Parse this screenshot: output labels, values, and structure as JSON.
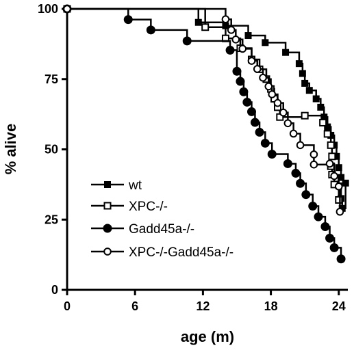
{
  "chart_data": {
    "type": "line",
    "step": true,
    "xlabel": "age (m)",
    "ylabel": "% alive",
    "xlim": [
      0,
      24.8
    ],
    "ylim": [
      0,
      100
    ],
    "x_ticks": [
      0,
      6,
      12,
      18,
      24
    ],
    "y_ticks": [
      0,
      25,
      50,
      75,
      100
    ],
    "x_tick_labels": [
      "0",
      "6",
      "12",
      "18",
      "24"
    ],
    "y_tick_labels": [
      "0",
      "25",
      "50",
      "75",
      "100"
    ],
    "grid": false,
    "legend_position": "lower-left",
    "series": [
      {
        "name": "wt",
        "marker": "filled-square",
        "points": [
          [
            0,
            100
          ],
          [
            11.6,
            95.2
          ],
          [
            14.0,
            94.0
          ],
          [
            16.0,
            90.5
          ],
          [
            17.5,
            88.0
          ],
          [
            19.3,
            84.5
          ],
          [
            20.5,
            80.5
          ],
          [
            20.8,
            77.0
          ],
          [
            21.0,
            73.5
          ],
          [
            21.4,
            71.0
          ],
          [
            22.0,
            68.0
          ],
          [
            22.4,
            65.0
          ],
          [
            22.7,
            61.5
          ],
          [
            23.0,
            58.0
          ],
          [
            23.3,
            55.0
          ],
          [
            23.6,
            51.5
          ],
          [
            23.8,
            47.5
          ],
          [
            24.0,
            43.5
          ],
          [
            24.2,
            40.0
          ],
          [
            24.0,
            37.0
          ],
          [
            24.2,
            32.5
          ],
          [
            24.3,
            29.0
          ],
          [
            24.6,
            38.0
          ]
        ]
      },
      {
        "name": "XPC-/-",
        "marker": "open-square",
        "points": [
          [
            0,
            100
          ],
          [
            12.2,
            93.5
          ],
          [
            14.0,
            89.5
          ],
          [
            15.3,
            86.0
          ],
          [
            16.3,
            82.0
          ],
          [
            17.0,
            78.5
          ],
          [
            17.6,
            75.0
          ],
          [
            18.0,
            71.5
          ],
          [
            18.3,
            68.0
          ],
          [
            18.6,
            65.0
          ],
          [
            18.8,
            61.5
          ],
          [
            21.0,
            62.0
          ],
          [
            22.6,
            59.5
          ],
          [
            23.0,
            55.5
          ],
          [
            23.3,
            51.5
          ],
          [
            23.4,
            47.5
          ],
          [
            23.3,
            44.0
          ],
          [
            23.4,
            41.0
          ],
          [
            23.6,
            37.5
          ],
          [
            24.0,
            32.0
          ]
        ]
      },
      {
        "name": "Gadd45a-/-",
        "marker": "filled-circle",
        "points": [
          [
            0,
            100
          ],
          [
            5.4,
            96.2
          ],
          [
            7.4,
            92.5
          ],
          [
            10.6,
            88.6
          ],
          [
            14.4,
            85.3
          ],
          [
            15.0,
            77.8
          ],
          [
            15.3,
            74.2
          ],
          [
            15.6,
            70.5
          ],
          [
            15.9,
            66.8
          ],
          [
            16.3,
            63.4
          ],
          [
            16.6,
            59.6
          ],
          [
            17.0,
            56.1
          ],
          [
            17.5,
            52.2
          ],
          [
            18.1,
            48.3
          ],
          [
            19.5,
            44.9
          ],
          [
            20.2,
            41.5
          ],
          [
            20.6,
            37.9
          ],
          [
            21.1,
            33.9
          ],
          [
            21.7,
            29.8
          ],
          [
            22.2,
            26.0
          ],
          [
            22.8,
            22.5
          ],
          [
            23.2,
            18.4
          ],
          [
            23.6,
            15.0
          ],
          [
            24.2,
            11.0
          ]
        ]
      },
      {
        "name": "XPC-/-Gadd45a-/-",
        "marker": "open-circle",
        "points": [
          [
            0,
            100
          ],
          [
            14.0,
            96.3
          ],
          [
            14.5,
            92.5
          ],
          [
            14.9,
            89.1
          ],
          [
            15.5,
            85.8
          ],
          [
            16.3,
            81.5
          ],
          [
            16.8,
            78.6
          ],
          [
            17.3,
            75.5
          ],
          [
            17.8,
            72.4
          ],
          [
            18.1,
            69.6
          ],
          [
            18.6,
            66.5
          ],
          [
            19.1,
            63.1
          ],
          [
            19.5,
            59.3
          ],
          [
            20.0,
            55.6
          ],
          [
            20.6,
            51.5
          ],
          [
            21.8,
            48.2
          ],
          [
            21.8,
            44.6
          ],
          [
            23.2,
            44.9
          ],
          [
            23.6,
            40.5
          ],
          [
            24.0,
            36.8
          ],
          [
            24.1,
            27.8
          ]
        ]
      }
    ]
  },
  "legend": {
    "entries": [
      {
        "label": "wt",
        "marker": "filled-square"
      },
      {
        "label": "XPC-/-",
        "marker": "open-square"
      },
      {
        "label": "Gadd45a-/-",
        "marker": "filled-circle"
      },
      {
        "label": "XPC-/-Gadd45a-/-",
        "marker": "open-circle"
      }
    ]
  }
}
